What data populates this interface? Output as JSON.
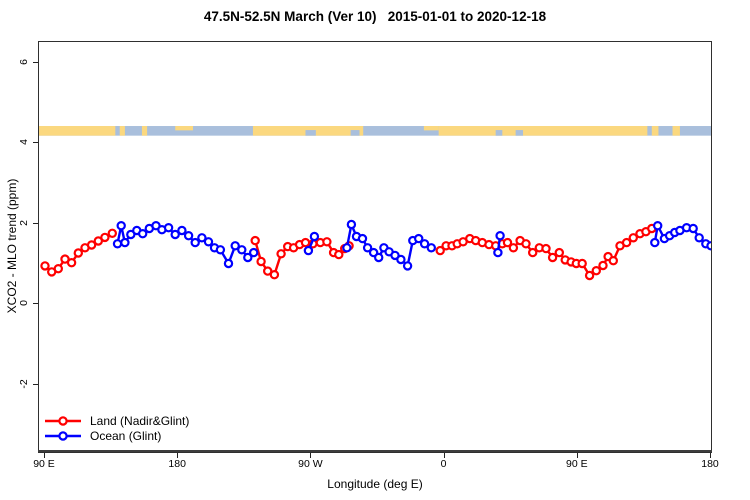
{
  "title": "47.5N-52.5N March (Ver 10)   2015-01-01 to 2020-12-18",
  "colors": {
    "land_series": "#ff0000",
    "ocean_series": "#0000ff",
    "strip_land": "#fbd87f",
    "strip_ocean": "#a9bfdc",
    "axis": "#2f2f2f"
  },
  "legend": {
    "entries": [
      {
        "label": "Land (Nadir&Glint)",
        "color": "#ff0000"
      },
      {
        "label": "Ocean (Glint)",
        "color": "#0000ff"
      }
    ]
  },
  "chart_data": {
    "type": "line",
    "title": "47.5N-52.5N March (Ver 10)   2015-01-01 to 2020-12-18",
    "xlabel": "Longitude (deg E)",
    "ylabel": "XCO2 - MLO trend (ppm)",
    "xlim": [
      85.95,
      540
    ],
    "ylim": [
      -3.68,
      6.52
    ],
    "grid": false,
    "legend_position": "bottom-left-inside",
    "x_ticks": [
      {
        "lon": 90,
        "label": "90 E"
      },
      {
        "lon": 180,
        "label": "180"
      },
      {
        "lon": 270,
        "label": "90 W"
      },
      {
        "lon": 360,
        "label": "0"
      },
      {
        "lon": 450,
        "label": "90 E"
      },
      {
        "lon": 540,
        "label": "180"
      }
    ],
    "y_ticks": [
      {
        "value": -2,
        "label": "-2"
      },
      {
        "value": 0,
        "label": "0"
      },
      {
        "value": 2,
        "label": "2"
      },
      {
        "value": 4,
        "label": "4"
      },
      {
        "value": 6,
        "label": "6"
      }
    ],
    "series": [
      {
        "name": "Land (Nadir&Glint)",
        "color": "#ff0000",
        "segments": [
          [
            [
              90,
              0.95
            ],
            [
              94.5,
              0.8
            ],
            [
              99,
              0.88
            ],
            [
              103.5,
              1.12
            ],
            [
              108,
              1.03
            ],
            [
              112.5,
              1.27
            ],
            [
              117,
              1.4
            ],
            [
              121.5,
              1.47
            ],
            [
              126,
              1.57
            ],
            [
              130.5,
              1.66
            ],
            [
              135.5,
              1.76
            ]
          ],
          [
            [
              232,
              1.58
            ],
            [
              236,
              1.06
            ],
            [
              240.5,
              0.82
            ],
            [
              245,
              0.73
            ],
            [
              249.5,
              1.25
            ],
            [
              254,
              1.43
            ],
            [
              258,
              1.4
            ],
            [
              262,
              1.48
            ],
            [
              266,
              1.53
            ],
            [
              271,
              1.5
            ],
            [
              276,
              1.53
            ],
            [
              280.5,
              1.55
            ],
            [
              285,
              1.28
            ],
            [
              288.5,
              1.23
            ],
            [
              292.5,
              1.38
            ],
            [
              295.5,
              1.45
            ]
          ],
          [
            [
              357,
              1.33
            ],
            [
              361,
              1.45
            ],
            [
              365,
              1.45
            ],
            [
              368.5,
              1.5
            ],
            [
              372.5,
              1.55
            ],
            [
              377,
              1.63
            ],
            [
              381,
              1.58
            ],
            [
              385.5,
              1.53
            ],
            [
              390,
              1.48
            ],
            [
              394.5,
              1.45
            ],
            [
              399,
              1.5
            ],
            [
              402.5,
              1.53
            ],
            [
              406.5,
              1.4
            ],
            [
              411,
              1.58
            ],
            [
              415,
              1.5
            ],
            [
              419.5,
              1.28
            ],
            [
              424,
              1.4
            ],
            [
              428.5,
              1.38
            ],
            [
              433,
              1.16
            ],
            [
              437.5,
              1.28
            ],
            [
              441.5,
              1.1
            ],
            [
              445.5,
              1.05
            ],
            [
              449,
              1.01
            ],
            [
              453,
              1.01
            ],
            [
              458,
              0.71
            ],
            [
              462.5,
              0.83
            ],
            [
              467,
              0.96
            ],
            [
              470.5,
              1.18
            ],
            [
              474,
              1.08
            ],
            [
              478.5,
              1.45
            ],
            [
              483,
              1.53
            ],
            [
              487.5,
              1.65
            ],
            [
              492,
              1.75
            ],
            [
              496,
              1.8
            ],
            [
              500,
              1.88
            ]
          ]
        ]
      },
      {
        "name": "Ocean (Glint)",
        "color": "#0000ff",
        "segments": [
          [
            [
              139,
              1.5
            ],
            [
              141.5,
              1.95
            ],
            [
              144,
              1.53
            ],
            [
              148,
              1.73
            ],
            [
              152,
              1.83
            ],
            [
              156,
              1.75
            ],
            [
              160.5,
              1.88
            ],
            [
              165,
              1.95
            ],
            [
              169,
              1.85
            ],
            [
              173.5,
              1.9
            ],
            [
              178,
              1.73
            ],
            [
              182.5,
              1.83
            ],
            [
              187,
              1.7
            ],
            [
              191.5,
              1.53
            ],
            [
              196,
              1.65
            ],
            [
              200.5,
              1.55
            ],
            [
              204.5,
              1.4
            ],
            [
              208.5,
              1.35
            ],
            [
              214,
              1.01
            ],
            [
              218.5,
              1.45
            ],
            [
              223,
              1.35
            ],
            [
              227,
              1.16
            ],
            [
              231,
              1.28
            ]
          ],
          [
            [
              268,
              1.33
            ],
            [
              272,
              1.68
            ]
          ],
          [
            [
              294,
              1.4
            ],
            [
              297,
              1.98
            ],
            [
              300.5,
              1.68
            ],
            [
              304.5,
              1.63
            ],
            [
              308,
              1.4
            ],
            [
              312,
              1.28
            ],
            [
              315.5,
              1.16
            ],
            [
              319,
              1.4
            ],
            [
              322.5,
              1.3
            ],
            [
              326.5,
              1.21
            ],
            [
              330.5,
              1.11
            ],
            [
              335,
              0.95
            ],
            [
              338.5,
              1.58
            ],
            [
              342.5,
              1.63
            ],
            [
              346.5,
              1.5
            ],
            [
              351,
              1.4
            ]
          ],
          [
            [
              396,
              1.28
            ],
            [
              397.5,
              1.7
            ]
          ],
          [
            [
              502,
              1.53
            ],
            [
              504,
              1.95
            ],
            [
              508.5,
              1.63
            ],
            [
              512,
              1.7
            ],
            [
              515.5,
              1.78
            ],
            [
              519,
              1.83
            ],
            [
              523.5,
              1.9
            ],
            [
              528,
              1.88
            ],
            [
              532,
              1.65
            ],
            [
              536.5,
              1.5
            ],
            [
              540,
              1.45
            ]
          ]
        ]
      }
    ],
    "map_strip": {
      "description": "land/ocean map band",
      "v_top": 4.43,
      "v_bottom": 4.19,
      "land_color": "#fbd87f",
      "ocean_color": "#a9bfdc",
      "segments": [
        {
          "from": 85.95,
          "to": 540,
          "type": "ocean",
          "part": "full"
        },
        {
          "from": 85.95,
          "to": 137.5,
          "type": "land",
          "part": "full"
        },
        {
          "from": 140.5,
          "to": 144,
          "type": "land",
          "part": "full"
        },
        {
          "from": 155.5,
          "to": 159,
          "type": "land",
          "part": "full"
        },
        {
          "from": 178,
          "to": 190,
          "type": "land",
          "part": "top"
        },
        {
          "from": 230.5,
          "to": 305,
          "type": "land",
          "part": "full"
        },
        {
          "from": 266,
          "to": 273,
          "type": "ocean",
          "part": "bottom"
        },
        {
          "from": 296.5,
          "to": 302.5,
          "type": "ocean",
          "part": "bottom"
        },
        {
          "from": 346,
          "to": 356,
          "type": "land",
          "part": "top"
        },
        {
          "from": 356,
          "to": 497,
          "type": "land",
          "part": "full"
        },
        {
          "from": 394.5,
          "to": 399,
          "type": "ocean",
          "part": "bottom"
        },
        {
          "from": 408,
          "to": 413,
          "type": "ocean",
          "part": "bottom"
        },
        {
          "from": 500,
          "to": 504.5,
          "type": "land",
          "part": "full"
        },
        {
          "from": 514,
          "to": 519,
          "type": "land",
          "part": "full"
        }
      ]
    },
    "marker": {
      "shape": "open-circle",
      "radius": 3.6,
      "stroke_width": 2.2,
      "line_width": 2.4
    }
  }
}
